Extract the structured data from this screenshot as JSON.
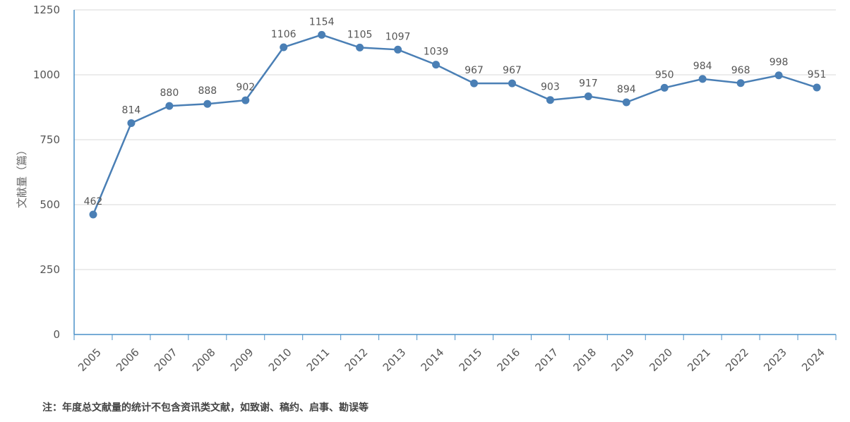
{
  "chart_data": {
    "type": "line",
    "title": "",
    "ylabel": "文献量（篇）",
    "xlabel": "",
    "ylim": [
      0,
      1250
    ],
    "yticks": [
      0,
      250,
      500,
      750,
      1000,
      1250
    ],
    "categories": [
      "2005",
      "2006",
      "2007",
      "2008",
      "2009",
      "2010",
      "2011",
      "2012",
      "2013",
      "2014",
      "2015",
      "2016",
      "2017",
      "2018",
      "2019",
      "2020",
      "2021",
      "2022",
      "2023",
      "2024"
    ],
    "values": [
      462,
      814,
      880,
      888,
      902,
      1106,
      1154,
      1105,
      1097,
      1039,
      967,
      967,
      903,
      917,
      894,
      950,
      984,
      968,
      998,
      951
    ],
    "grid": true,
    "legend": "none",
    "series_color": "#4a7fb5"
  },
  "footnote": "注：年度总文献量的统计不包含资讯类文献，如致谢、稿约、启事、勘误等"
}
